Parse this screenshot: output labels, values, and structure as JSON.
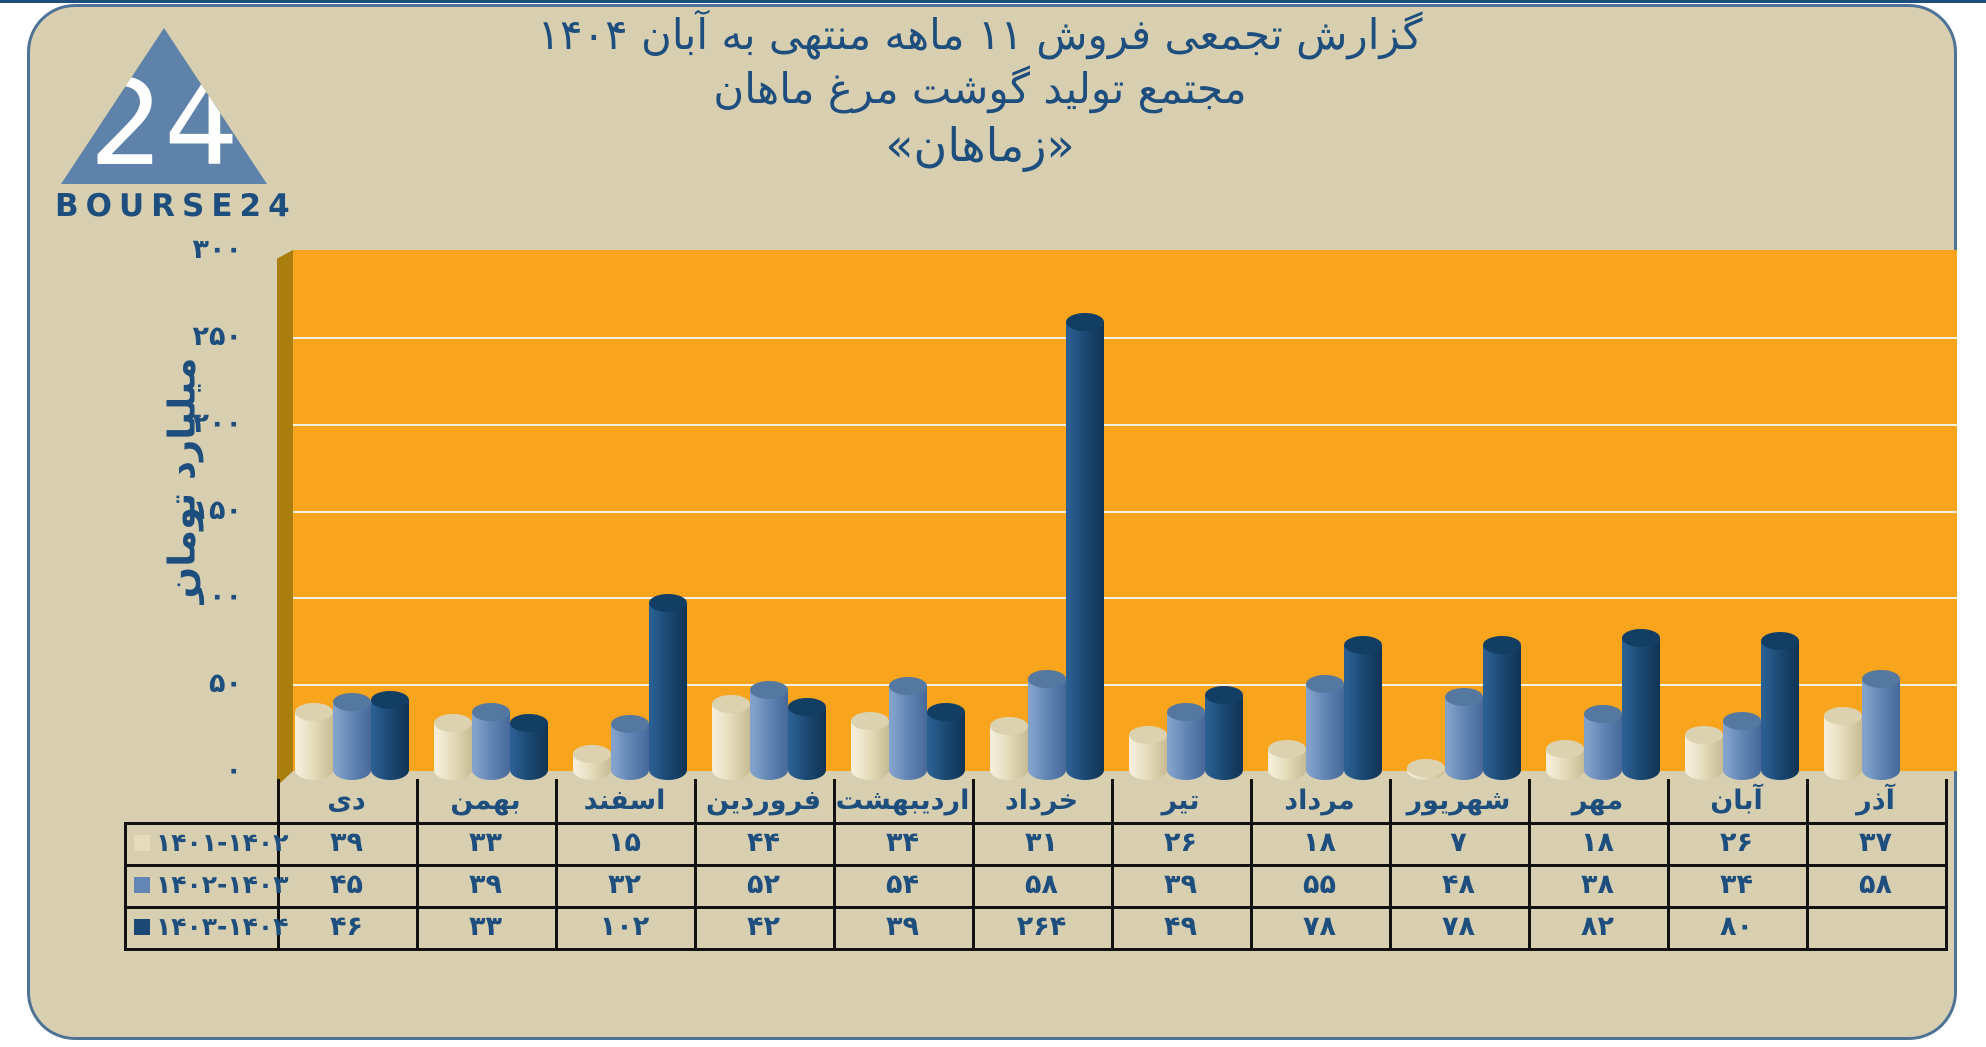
{
  "logo": {
    "wordmark": "BOURSE24",
    "number": "24",
    "triangle_color": "#5E82A9",
    "wordmark_color": "#1D4E7D"
  },
  "title": {
    "line1": "گزارش تجمعی فروش ۱۱ ماهه منتهی به آبان ۱۴۰۴",
    "line2": "مجتمع تولید گوشت مرغ ماهان",
    "line3": "«زماهان»"
  },
  "chart_data": {
    "type": "bar",
    "style": "3d-cylinder",
    "title": "گزارش تجمعی فروش ۱۱ ماهه منتهی به آبان ۱۴۰۴ مجتمع تولید گوشت مرغ ماهان «زماهان»",
    "ylabel": "میلیارد تومان",
    "ylim": [
      0,
      300
    ],
    "yticks": [
      0,
      50,
      100,
      150,
      200,
      250,
      300
    ],
    "grid": true,
    "plot_bg": "#F8A41D",
    "wall_color": "#A97E0D",
    "gridline_color": "#F5F1E2",
    "legend_position": "table-rows-left",
    "categories": [
      "دی",
      "بهمن",
      "اسفند",
      "فروردین",
      "اردیبهشت",
      "خرداد",
      "تیر",
      "مرداد",
      "شهریور",
      "مهر",
      "آبان",
      "آذر"
    ],
    "series": [
      {
        "name": "۱۴۰۱-۱۴۰۲",
        "color": "#E5DCBB",
        "color_light": "#F4EEDA",
        "color_dark": "#C7BB93",
        "color_cap": "#DCD2AF",
        "values": [
          39,
          33,
          15,
          44,
          34,
          31,
          26,
          18,
          7,
          18,
          26,
          37
        ]
      },
      {
        "name": "۱۴۰۲-۱۴۰۳",
        "color": "#6386B5",
        "color_light": "#82A2CB",
        "color_dark": "#47699A",
        "color_cap": "#54789F",
        "values": [
          45,
          39,
          32,
          52,
          54,
          58,
          39,
          55,
          48,
          38,
          34,
          58
        ]
      },
      {
        "name": "۱۴۰۳-۱۴۰۴",
        "color": "#1B4973",
        "color_light": "#2B5F92",
        "color_dark": "#103354",
        "color_cap": "#123E64",
        "values": [
          46,
          33,
          102,
          42,
          39,
          264,
          49,
          78,
          78,
          82,
          80,
          null
        ]
      }
    ]
  }
}
